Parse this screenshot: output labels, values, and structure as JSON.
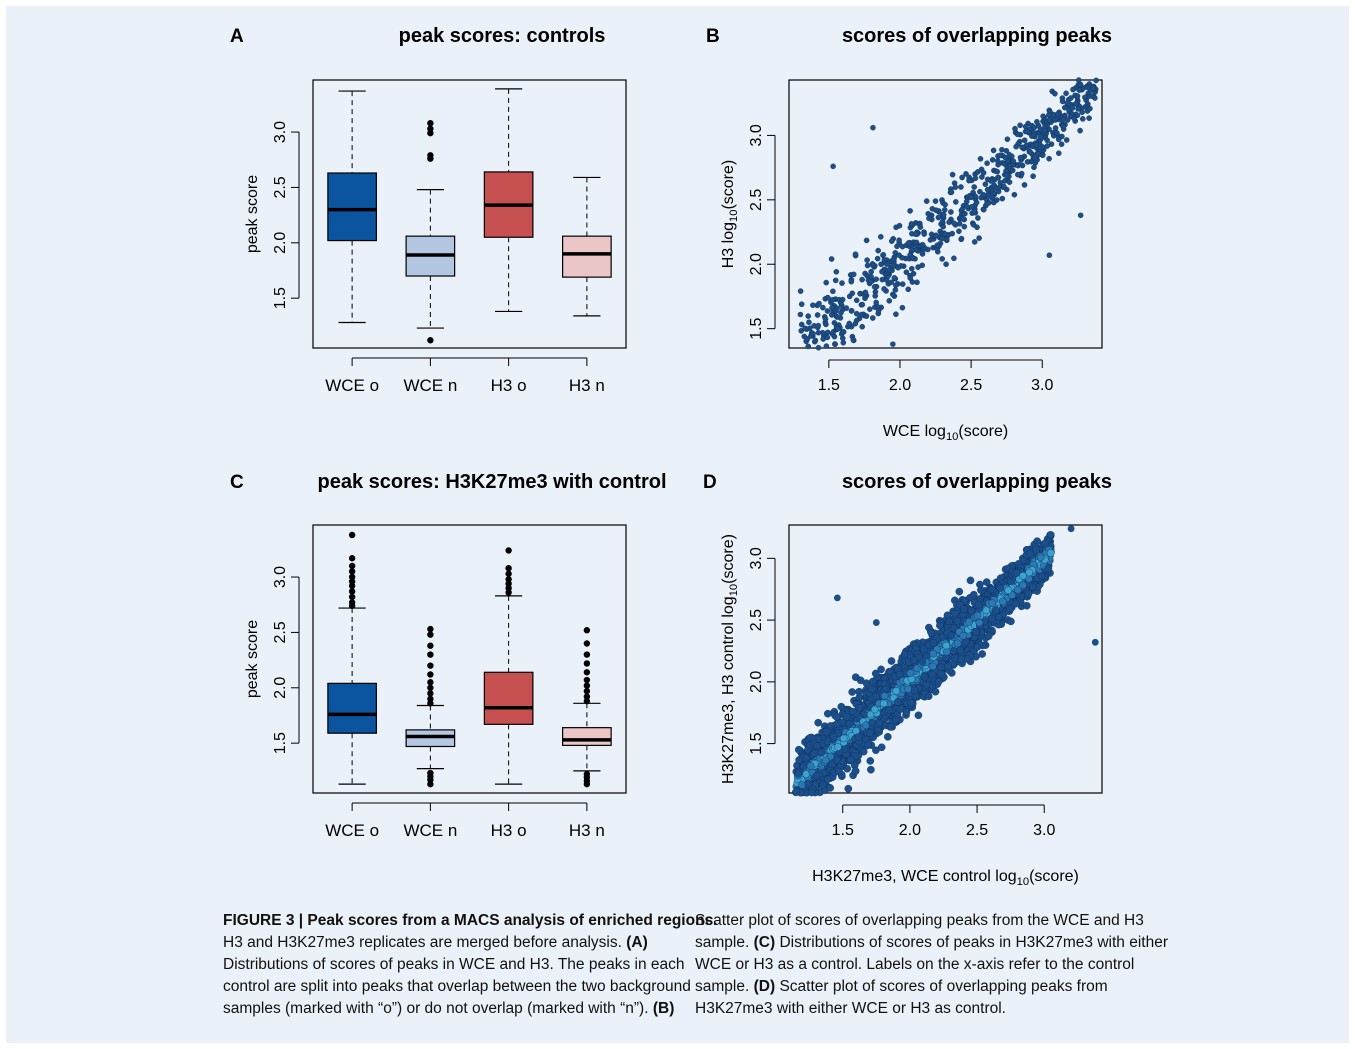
{
  "figure": {
    "panels": [
      {
        "letter": "A",
        "title": "peak scores: controls"
      },
      {
        "letter": "B",
        "title": "scores of overlapping peaks"
      },
      {
        "letter": "C",
        "title": "peak scores: H3K27me3 with control"
      },
      {
        "letter": "D",
        "title": "scores of overlapping peaks"
      }
    ]
  },
  "chart_data": [
    {
      "type": "box",
      "panel": "A",
      "title": "peak scores: controls",
      "ylabel": "peak score",
      "xlabel": "",
      "ylim": [
        1.05,
        3.47
      ],
      "yticks": [
        "1.5",
        "2.0",
        "2.5",
        "3.0"
      ],
      "categories": [
        "WCE o",
        "WCE n",
        "H3 o",
        "H3 n"
      ],
      "colors": [
        "#0a54a0",
        "#b3c7e2",
        "#c5504f",
        "#ecc6c6"
      ],
      "boxes": [
        {
          "min": 1.28,
          "q1": 2.02,
          "median": 2.3,
          "q3": 2.63,
          "max": 3.37,
          "outliers": []
        },
        {
          "min": 1.23,
          "q1": 1.7,
          "median": 1.89,
          "q3": 2.06,
          "max": 2.48,
          "outliers": [
            1.12,
            2.76,
            2.79,
            2.99,
            3.03,
            3.08
          ]
        },
        {
          "min": 1.38,
          "q1": 2.05,
          "median": 2.34,
          "q3": 2.64,
          "max": 3.39,
          "outliers": []
        },
        {
          "min": 1.34,
          "q1": 1.69,
          "median": 1.9,
          "q3": 2.06,
          "max": 2.59,
          "outliers": []
        }
      ]
    },
    {
      "type": "scatter",
      "panel": "B",
      "title": "scores of overlapping peaks",
      "xlabel_main": "WCE log",
      "xlabel_sub": "10",
      "xlabel_tail": "(score)",
      "ylabel_main": "H3 log",
      "ylabel_sub": "10",
      "ylabel_tail": "(score)",
      "xlim": [
        1.22,
        3.42
      ],
      "ylim": [
        1.35,
        3.43
      ],
      "xticks": [
        "1.5",
        "2.0",
        "2.5",
        "3.0"
      ],
      "yticks": [
        "1.5",
        "2.0",
        "2.5",
        "3.0"
      ],
      "color": "#1d4e85",
      "trend": {
        "x0": 1.3,
        "x1": 3.38,
        "slope": 1.0,
        "intercept": 0.0,
        "n": 700,
        "spread": 0.12
      },
      "points": [
        [
          1.53,
          2.76
        ],
        [
          1.81,
          3.06
        ],
        [
          3.27,
          2.38
        ],
        [
          3.05,
          2.07
        ],
        [
          1.36,
          1.55
        ],
        [
          1.3,
          1.61
        ],
        [
          1.95,
          1.38
        ]
      ]
    },
    {
      "type": "box",
      "panel": "C",
      "title": "peak scores: H3K27me3 with control",
      "ylabel": "peak score",
      "xlabel": "",
      "ylim": [
        1.05,
        3.47
      ],
      "yticks": [
        "1.5",
        "2.0",
        "2.5",
        "3.0"
      ],
      "categories": [
        "WCE o",
        "WCE n",
        "H3 o",
        "H3 n"
      ],
      "colors": [
        "#0a54a0",
        "#b3c7e2",
        "#c5504f",
        "#ecc6c6"
      ],
      "boxes": [
        {
          "min": 1.13,
          "q1": 1.59,
          "median": 1.76,
          "q3": 2.04,
          "max": 2.72,
          "outliers": [
            2.74,
            2.77,
            2.82,
            2.87,
            2.92,
            2.96,
            3.0,
            3.05,
            3.1,
            3.17,
            3.38
          ]
        },
        {
          "min": 1.27,
          "q1": 1.47,
          "median": 1.56,
          "q3": 1.62,
          "max": 1.84,
          "outliers": [
            1.13,
            1.17,
            1.2,
            1.23,
            1.86,
            1.9,
            1.95,
            2.0,
            2.05,
            2.12,
            2.2,
            2.3,
            2.38,
            2.48,
            2.53
          ]
        },
        {
          "min": 1.13,
          "q1": 1.67,
          "median": 1.82,
          "q3": 2.14,
          "max": 2.83,
          "outliers": [
            2.86,
            2.9,
            2.94,
            2.98,
            3.03,
            3.08,
            3.24
          ]
        },
        {
          "min": 1.25,
          "q1": 1.48,
          "median": 1.53,
          "q3": 1.64,
          "max": 1.86,
          "outliers": [
            1.13,
            1.16,
            1.19,
            1.22,
            1.88,
            1.92,
            1.97,
            2.02,
            2.07,
            2.14,
            2.22,
            2.3,
            2.4,
            2.52
          ]
        }
      ]
    },
    {
      "type": "scatter",
      "panel": "D",
      "title": "scores of overlapping peaks",
      "xlabel_main": "H3K27me3, WCE control log",
      "xlabel_sub": "10",
      "xlabel_tail": "(score)",
      "ylabel_main": "H3K27me3, H3 control log",
      "ylabel_sub": "10",
      "ylabel_tail": "(score)",
      "xlim": [
        1.1,
        3.43
      ],
      "ylim": [
        1.1,
        3.27
      ],
      "xticks": [
        "1.5",
        "2.0",
        "2.5",
        "3.0"
      ],
      "yticks": [
        "1.5",
        "2.0",
        "2.5",
        "3.0"
      ],
      "color": "#1a4f8c",
      "trend": {
        "x0": 1.15,
        "x1": 3.05,
        "slope": 0.98,
        "intercept": 0.05,
        "n": 3000,
        "spread": 0.09
      },
      "points": [
        [
          3.38,
          2.32
        ],
        [
          3.2,
          3.24
        ],
        [
          1.46,
          2.68
        ],
        [
          1.75,
          2.48
        ]
      ]
    }
  ],
  "caption": {
    "label": "FIGURE 3 | Peak scores from a MACS analysis of enriched regions.",
    "left_lines": [
      "H3 and H3K27me3 replicates are merged before analysis.",
      "(A)",
      "Distributions of scores of peaks in WCE and H3. The peaks in each",
      "control are split into peaks that overlap between the two background",
      "samples (marked with “o”) or do not overlap (marked with “n”).",
      "(B)"
    ],
    "right_lines": [
      "Scatter plot of scores of overlapping peaks from the WCE and H3",
      "sample.",
      "(C)",
      "Distributions of scores of peaks in H3K27me3 with either",
      "WCE or H3 as a control. Labels on the x-axis refer to the control",
      "sample.",
      "(D)",
      "Scatter plot of scores of overlapping peaks from",
      "H3K27me3 with either WCE or H3 as control."
    ]
  }
}
